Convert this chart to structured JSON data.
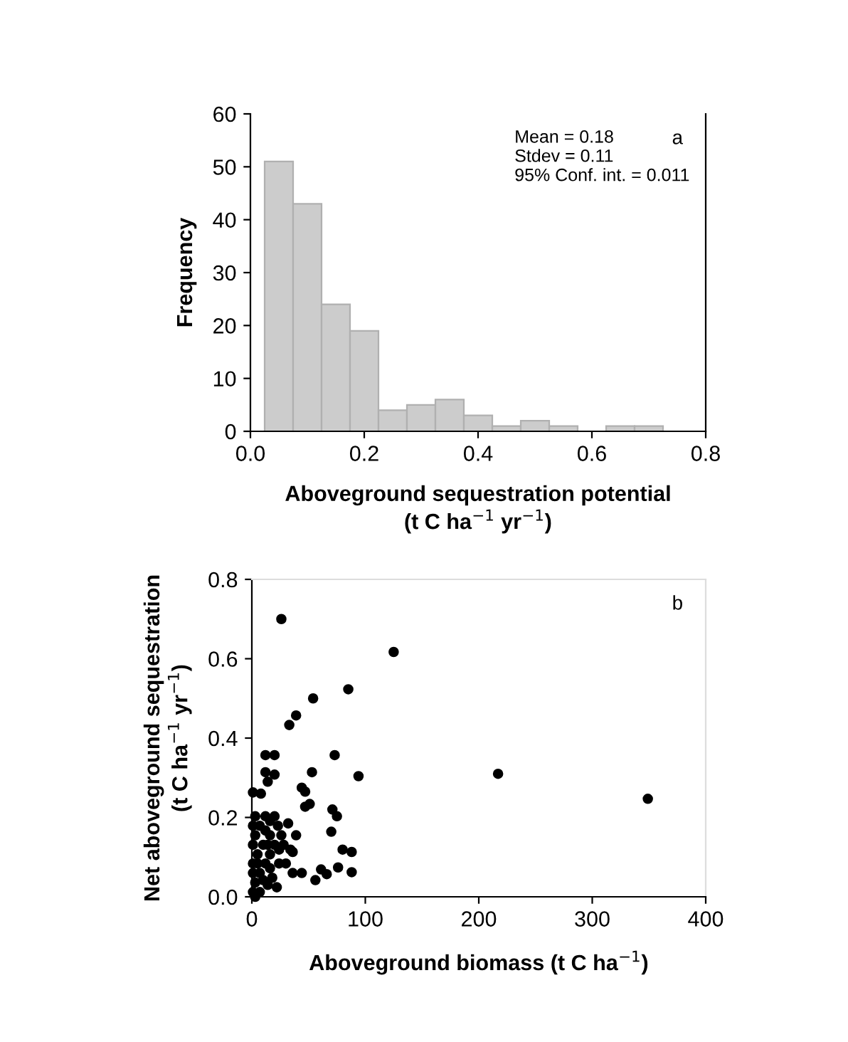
{
  "chart_data": [
    {
      "type": "histogram",
      "xlabel": "Aboveground sequestration potential\n(t C ha$^{−1}$ yr$^{−1}$)",
      "ylabel": "Frequency",
      "bins": [
        0.025,
        0.075,
        0.125,
        0.175,
        0.225,
        0.275,
        0.325,
        0.375,
        0.425,
        0.475,
        0.525,
        0.575,
        0.625,
        0.675,
        0.725
      ],
      "values": [
        51,
        43,
        24,
        19,
        4,
        5,
        6,
        3,
        1,
        2,
        1,
        0,
        1,
        1
      ],
      "color": "#cccccc",
      "xlim": [
        0,
        0.8
      ],
      "xticks": [
        {
          "value": 0,
          "label": "0.0"
        },
        0.2,
        0.4,
        0.6,
        0.8
      ],
      "ylim": [
        0,
        60
      ],
      "yticks": [
        0,
        10,
        20,
        30,
        40,
        50,
        60
      ],
      "annotations": [
        "Mean = 0.18",
        "Stdev = 0.11",
        "95% Conf. int. = 0.011",
        "a"
      ],
      "grid": false
    },
    {
      "type": "scatter",
      "xlabel": "Aboveground biomass (t C ha$^{−1}$)",
      "ylabel": "Net aboveground sequestration\n(t C ha$^{−1}$ yr$^{−1}$)",
      "x": [
        26,
        125,
        85,
        54,
        39,
        33,
        73,
        12,
        20,
        12,
        20,
        14,
        53,
        94,
        217,
        349,
        1,
        8,
        44,
        47,
        51,
        47,
        71,
        75,
        70,
        80,
        88,
        88,
        76,
        66,
        61,
        56,
        44,
        36,
        30,
        36,
        34,
        39,
        32,
        23,
        20,
        12,
        3,
        22,
        1,
        3,
        7,
        12,
        5,
        10,
        16,
        3,
        7,
        1,
        16,
        20,
        18,
        14,
        7,
        1,
        1,
        12,
        26,
        28,
        24,
        16,
        3,
        10,
        5,
        1,
        14,
        16,
        24
      ],
      "values": [
        0.7,
        0.617,
        0.523,
        0.5,
        0.457,
        0.433,
        0.357,
        0.357,
        0.357,
        0.314,
        0.308,
        0.29,
        0.314,
        0.304,
        0.31,
        0.247,
        0.263,
        0.26,
        0.275,
        0.265,
        0.234,
        0.227,
        0.22,
        0.203,
        0.164,
        0.119,
        0.113,
        0.062,
        0.074,
        0.057,
        0.069,
        0.042,
        0.06,
        0.06,
        0.084,
        0.113,
        0.119,
        0.155,
        0.185,
        0.179,
        0.203,
        0.203,
        0.203,
        0.024,
        0.012,
        0.036,
        0.06,
        0.084,
        0.107,
        0.131,
        0.155,
        0.155,
        0.179,
        0.179,
        0.107,
        0.131,
        0.048,
        0.03,
        0.012,
        0.084,
        0.131,
        0.167,
        0.155,
        0.131,
        0.084,
        0.072,
        0.0,
        0.042,
        0.084,
        0.06,
        0.131,
        0.191,
        0.119
      ],
      "color": "#000000",
      "marker": "circle",
      "xlim": [
        0,
        400
      ],
      "xticks": [
        0,
        100,
        200,
        300,
        400
      ],
      "ylim": [
        0,
        0.8
      ],
      "yticks": [
        {
          "value": 0,
          "label": "0.0"
        },
        0.2,
        0.4,
        0.6,
        0.8
      ],
      "annotations": [
        "b"
      ],
      "grid": false
    }
  ]
}
